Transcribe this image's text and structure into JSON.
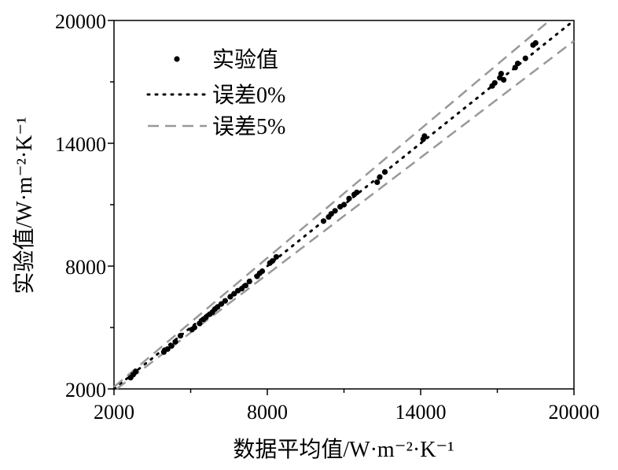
{
  "chart_data": {
    "type": "scatter",
    "title": "",
    "xlabel": "数据平均值/W·m⁻²·K⁻¹",
    "ylabel": "实验值/W·m⁻²·K⁻¹",
    "xlim": [
      2000,
      20000
    ],
    "ylim": [
      2000,
      20000
    ],
    "xticks": [
      "2000",
      "8000",
      "14000",
      "20000"
    ],
    "yticks": [
      "2000",
      "8000",
      "14000",
      "20000"
    ],
    "grid": false,
    "legend_position": "top-left",
    "legend": [
      {
        "label": "实验值",
        "style": "marker"
      },
      {
        "label": "误差0%",
        "style": "dotted"
      },
      {
        "label": "误差5%",
        "style": "dashed"
      }
    ],
    "reference_lines": [
      {
        "name": "误差0%",
        "factor": 1.0,
        "style": "dotted",
        "color": "#000000"
      },
      {
        "name": "误差5%",
        "factor": 1.05,
        "style": "dashed",
        "color": "#999999"
      },
      {
        "name": "误差5%",
        "factor": 0.95,
        "style": "dashed",
        "color": "#999999"
      }
    ],
    "series": [
      {
        "name": "实验值",
        "x": [
          2650,
          2750,
          2850,
          3950,
          4100,
          4250,
          4400,
          4600,
          5050,
          5150,
          5350,
          5500,
          5600,
          5750,
          5850,
          5950,
          6050,
          6200,
          6350,
          6550,
          6700,
          6850,
          7000,
          7150,
          7300,
          7600,
          7700,
          7800,
          8100,
          8200,
          8350,
          10200,
          10400,
          10500,
          10650,
          10850,
          11000,
          11200,
          11400,
          11500,
          12300,
          12400,
          12600,
          14100,
          14150,
          16800,
          16900,
          17100,
          17150,
          17250,
          17700,
          17800,
          18100,
          18400,
          18500
        ],
        "y": [
          2550,
          2700,
          2850,
          3800,
          3950,
          4100,
          4300,
          4600,
          4900,
          5000,
          5200,
          5400,
          5500,
          5650,
          5750,
          5900,
          6000,
          6150,
          6300,
          6500,
          6650,
          6800,
          6900,
          7050,
          7250,
          7500,
          7650,
          7750,
          8150,
          8250,
          8450,
          10200,
          10400,
          10550,
          10700,
          10900,
          11000,
          11300,
          11500,
          11600,
          12100,
          12350,
          12600,
          14200,
          14350,
          16800,
          16950,
          17200,
          17400,
          17100,
          17700,
          17900,
          18150,
          18800,
          18900
        ],
        "color": "#000000"
      }
    ]
  }
}
